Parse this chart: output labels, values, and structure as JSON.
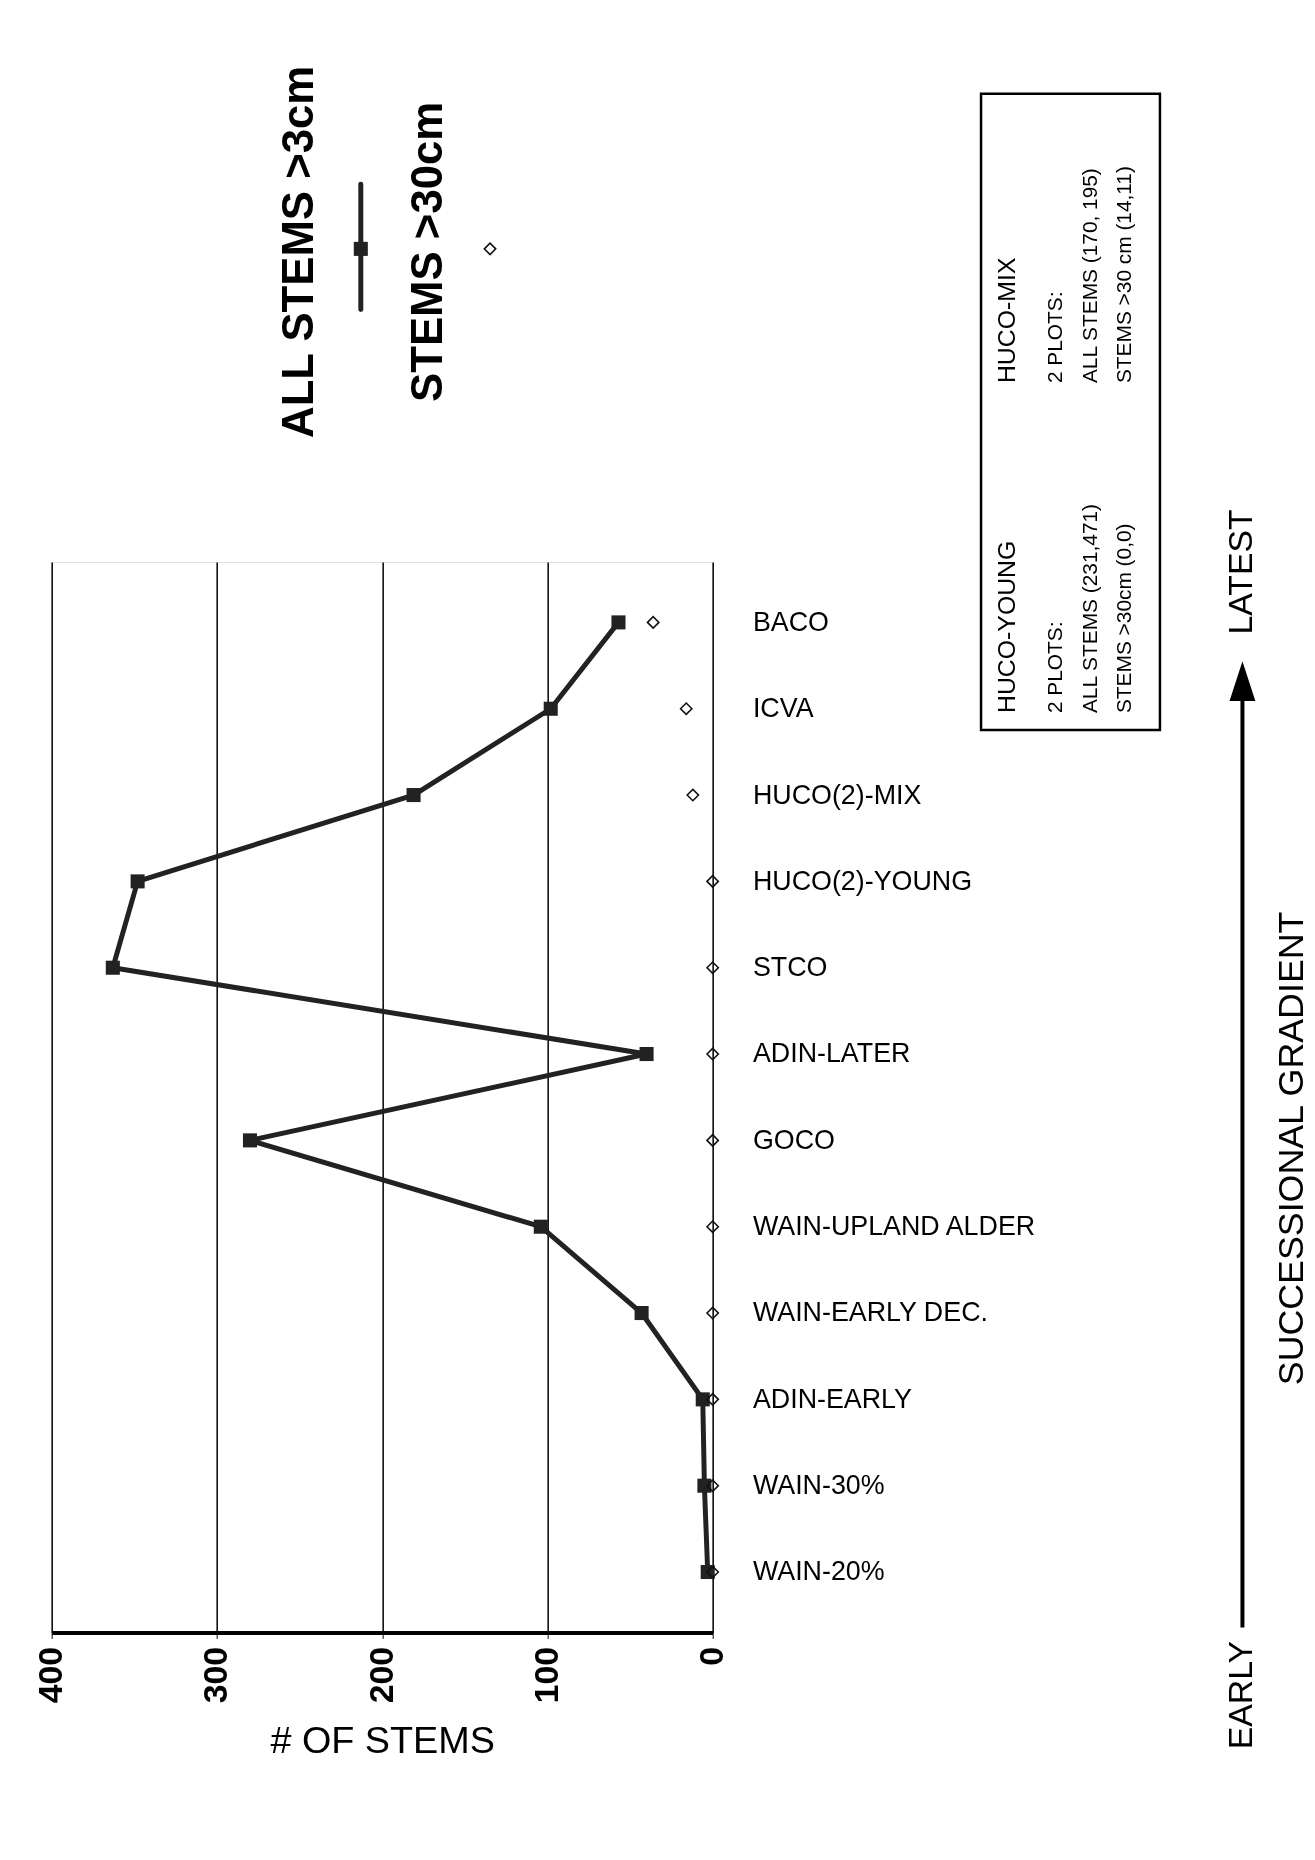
{
  "chart_data": {
    "type": "line",
    "orientation": "horizontal",
    "xlabel": "# OF STEMS",
    "categories": [
      "BACO",
      "ICVA",
      "HUCO(2)-MIX",
      "HUCO(2)-YOUNG",
      "STCO",
      "ADIN-LATER",
      "GOCO",
      "WAIN-UPLAND ALDER",
      "WAIN-EARLY DEC.",
      "ADIN-EARLY",
      "WAIN-30%",
      "WAIN-20%"
    ],
    "series": [
      {
        "name": "ALL STEMS >3cm",
        "type": "line",
        "color": "#222222",
        "marker": "square",
        "line_style": "solid",
        "values": [
          57,
          98,
          181,
          348,
          363,
          40,
          280,
          104,
          43,
          6,
          5,
          3
        ]
      },
      {
        "name": "STEMS >30cm",
        "type": "scatter",
        "color": "#111111",
        "marker": "diamond",
        "values": [
          36,
          16,
          12,
          0,
          0,
          0,
          0,
          0,
          0,
          0,
          0,
          0
        ]
      }
    ],
    "xlim": [
      400,
      0
    ],
    "xticks": [
      0,
      100,
      200,
      300,
      400
    ],
    "grid": "x",
    "legend": "top right",
    "annotations": [
      "HUCO-YOUNG",
      "2 PLOTS:",
      "ALL STEMS (231,471)",
      "STEMS >30cm (0,0)",
      "HUCO-MIX",
      "2 PLOTS:",
      "ALL STEMS (170, 195)",
      "STEMS >30 cm (14,11)",
      "EARLY",
      "LATEST",
      "SUCCESSIONAL GRADIENT"
    ]
  }
}
